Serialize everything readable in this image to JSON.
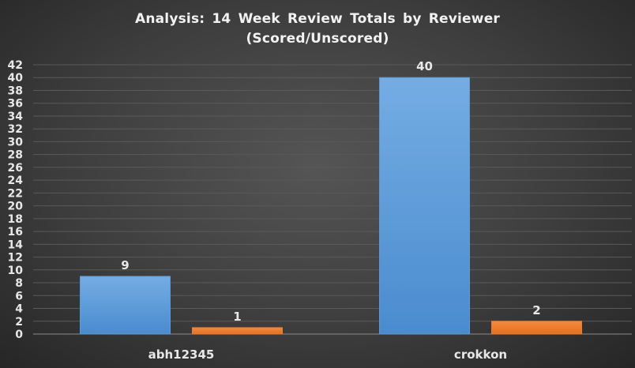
{
  "chart_data": {
    "type": "bar",
    "title": "Analysis:  14 Week Review Totals  by Reviewer",
    "subtitle": "(Scored/Unscored)",
    "categories": [
      "abh12345",
      "crokkon"
    ],
    "series": [
      {
        "values": [
          9,
          40
        ],
        "color": "#5b9bd5"
      },
      {
        "values": [
          1,
          2
        ],
        "color": "#ed7d31"
      }
    ],
    "ylim": [
      0,
      42
    ],
    "ytick_step": 2,
    "yticks": [
      "0",
      "2",
      "4",
      "6",
      "8",
      "10",
      "12",
      "14",
      "16",
      "18",
      "20",
      "22",
      "24",
      "26",
      "28",
      "30",
      "32",
      "34",
      "36",
      "38",
      "40",
      "42"
    ],
    "grid": true,
    "legend": "none",
    "data_labels": true
  }
}
